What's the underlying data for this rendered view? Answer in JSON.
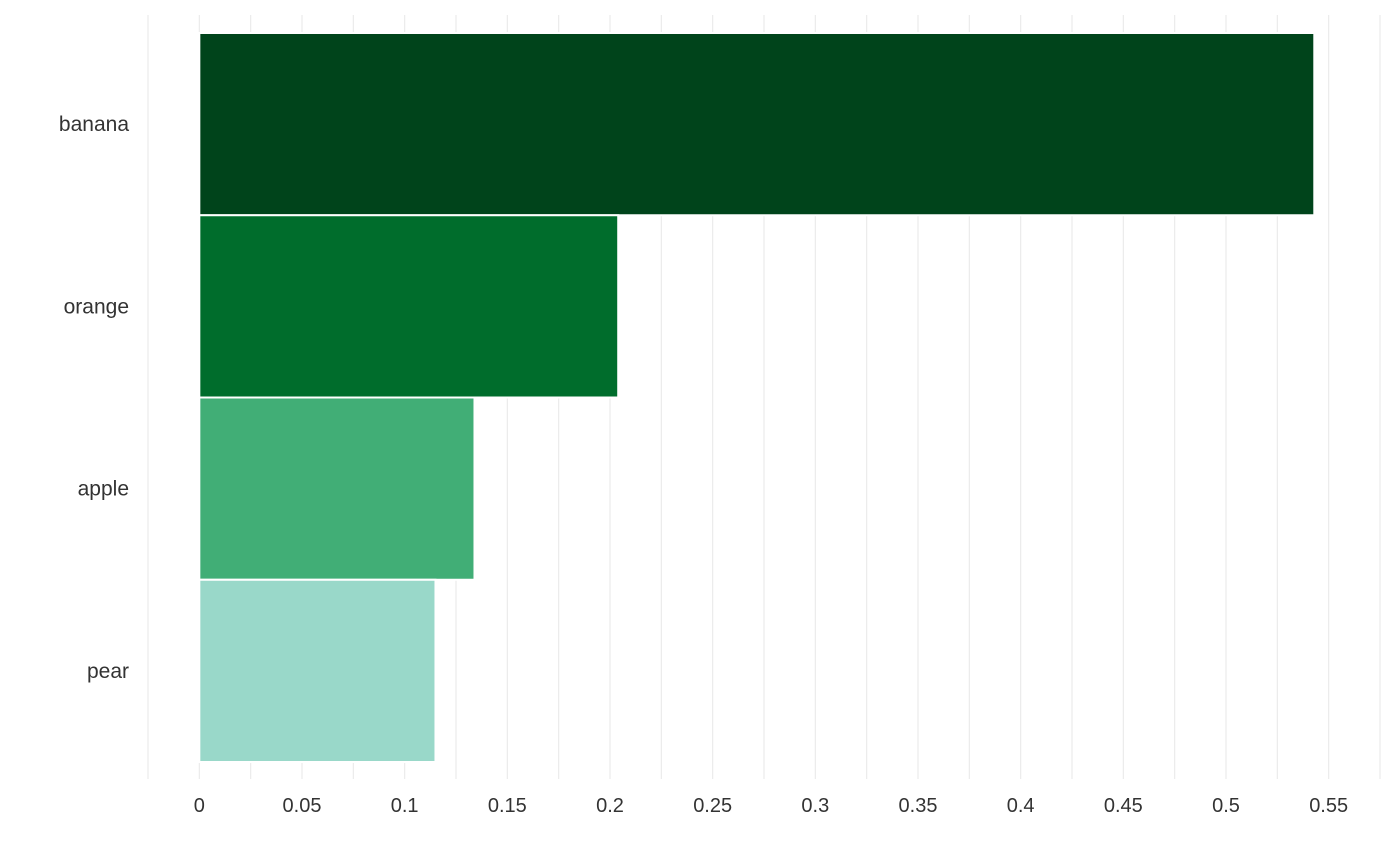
{
  "chart_data": {
    "type": "bar",
    "orientation": "horizontal",
    "categories": [
      "banana",
      "orange",
      "apple",
      "pear"
    ],
    "values": [
      0.543,
      0.204,
      0.134,
      0.115
    ],
    "bar_colors": [
      "#00441b",
      "#006d2c",
      "#41ae76",
      "#99d8c9"
    ],
    "xlim": [
      -0.025,
      0.575
    ],
    "x_ticks": [
      0,
      0.05,
      0.1,
      0.15,
      0.2,
      0.25,
      0.3,
      0.35,
      0.4,
      0.45,
      0.5,
      0.55
    ],
    "x_tick_labels": [
      "0",
      "0.05",
      "0.1",
      "0.15",
      "0.2",
      "0.25",
      "0.3",
      "0.35",
      "0.4",
      "0.45",
      "0.5",
      "0.55"
    ],
    "minor_x_gridlines": [
      -0.025,
      0.025,
      0.075,
      0.125,
      0.175,
      0.225,
      0.275,
      0.325,
      0.375,
      0.425,
      0.475,
      0.525,
      0.575
    ],
    "grid": "vertical",
    "legend": "none",
    "title": "",
    "xlabel": "",
    "ylabel": ""
  }
}
